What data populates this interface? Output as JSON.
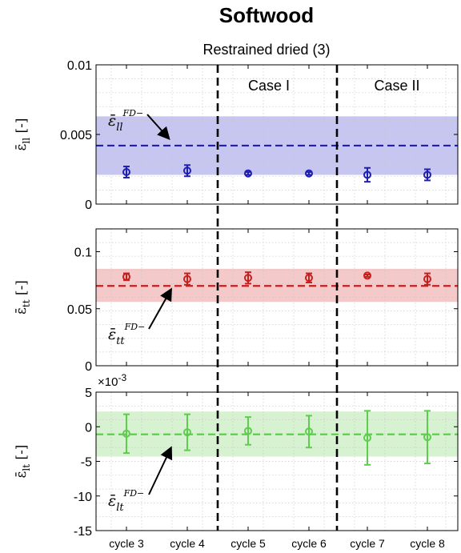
{
  "title": "Softwood",
  "subtitle": "Restrained dried (3)",
  "chart_data": [
    {
      "type": "scatter",
      "ylabel": "ε̄_ll [-]",
      "ylim": [
        0,
        0.01
      ],
      "yticks": [
        "0",
        "0.005",
        "0.01"
      ],
      "categories": [
        "cycle 3",
        "cycle 4",
        "cycle 5",
        "cycle 6",
        "cycle 7",
        "cycle 8"
      ],
      "series": [
        {
          "values": [
            0.0023,
            0.0024,
            0.0022,
            0.0022,
            0.0021,
            0.0021
          ],
          "errors": [
            0.0004,
            0.0004,
            0.0001,
            0.0001,
            0.0005,
            0.0004
          ],
          "color": "#1f1fb4"
        }
      ],
      "reference": {
        "label": "ε̄_ll^{FD-}",
        "value": 0.0042,
        "band": [
          0.0021,
          0.0063
        ],
        "band_color": "#c6c6f0",
        "line_color": "#1f1fb4"
      },
      "grid": true
    },
    {
      "type": "scatter",
      "ylabel": "ε̄_tt [-]",
      "ylim": [
        0,
        0.12
      ],
      "yticks": [
        "0",
        "0.05",
        "0.1"
      ],
      "categories": [
        "cycle 3",
        "cycle 4",
        "cycle 5",
        "cycle 6",
        "cycle 7",
        "cycle 8"
      ],
      "series": [
        {
          "values": [
            0.078,
            0.076,
            0.077,
            0.077,
            0.079,
            0.076
          ],
          "errors": [
            0.003,
            0.005,
            0.005,
            0.004,
            0.001,
            0.005
          ],
          "color": "#c81e1e"
        }
      ],
      "reference": {
        "label": "ε̄_tt^{FD-}",
        "value": 0.07,
        "band": [
          0.056,
          0.085
        ],
        "band_color": "#f3c9c9",
        "line_color": "#c81e1e"
      },
      "grid": true
    },
    {
      "type": "scatter",
      "ylabel": "ε̄_lt [-]",
      "ylim": [
        -15,
        5
      ],
      "yticks": [
        "-15",
        "-10",
        "-5",
        "0",
        "5"
      ],
      "scale_label": "×10",
      "scale_exponent": "-3",
      "categories": [
        "cycle 3",
        "cycle 4",
        "cycle 5",
        "cycle 6",
        "cycle 7",
        "cycle 8"
      ],
      "series": [
        {
          "values": [
            -1.0,
            -0.8,
            -0.6,
            -0.7,
            -1.6,
            -1.5
          ],
          "errors": [
            2.8,
            2.6,
            2.0,
            2.3,
            3.9,
            3.8
          ],
          "color": "#5fcc4f"
        }
      ],
      "reference": {
        "label": "ε̄_lt^{FD-}",
        "value": -1.1,
        "band": [
          -4.3,
          2.2
        ],
        "band_color": "#d6f2d0",
        "line_color": "#5fcc4f"
      },
      "grid": true
    }
  ],
  "cases": [
    "Case I",
    "Case II"
  ],
  "annotations": {
    "ll": {
      "base": "ε̄",
      "sub": "ll",
      "sup": "FD−"
    },
    "tt": {
      "base": "ε̄",
      "sub": "tt",
      "sup": "FD−"
    },
    "lt": {
      "base": "ε̄",
      "sub": "lt",
      "sup": "FD−"
    }
  },
  "ylabels": {
    "ll": {
      "base": "ε̄",
      "sub": "ll",
      "unit": "[-]"
    },
    "tt": {
      "base": "ε̄",
      "sub": "tt",
      "unit": "[-]"
    },
    "lt": {
      "base": "ε̄",
      "sub": "lt",
      "unit": "[-]"
    }
  }
}
